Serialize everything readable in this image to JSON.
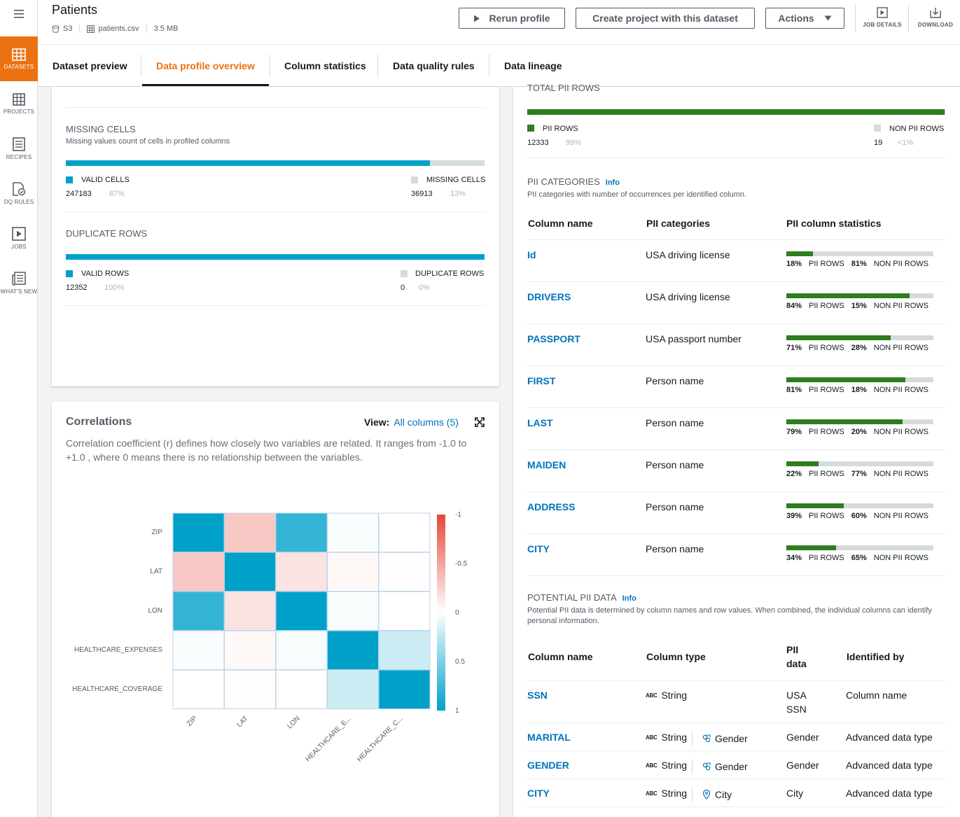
{
  "rail": {
    "items": [
      {
        "label": "DATASETS",
        "icon": "grid-icon",
        "active": true
      },
      {
        "label": "PROJECTS",
        "icon": "projects-icon",
        "active": false
      },
      {
        "label": "RECIPES",
        "icon": "recipe-icon",
        "active": false
      },
      {
        "label": "DQ RULES",
        "icon": "dq-rules-icon",
        "active": false
      },
      {
        "label": "JOBS",
        "icon": "jobs-icon",
        "active": false
      },
      {
        "label": "WHAT'S NEW",
        "icon": "news-icon",
        "active": false
      }
    ]
  },
  "header": {
    "title": "Patients",
    "source": "S3",
    "file": "patients.csv",
    "size": "3.5 MB",
    "rerun_label": "Rerun profile",
    "create_project_label": "Create project with this dataset",
    "actions_label": "Actions",
    "job_details_label": "JOB DETAILS",
    "download_label": "DOWNLOAD"
  },
  "tabs": [
    "Dataset preview",
    "Data profile overview",
    "Column statistics",
    "Data quality rules",
    "Data lineage"
  ],
  "active_tab": "Data profile overview",
  "missing_cells": {
    "title": "MISSING CELLS",
    "subtitle": "Missing values count of cells in profiled columns",
    "valid_label": "VALID CELLS",
    "valid_count": "247183",
    "valid_pct": "87%",
    "missing_label": "MISSING CELLS",
    "missing_count": "36913",
    "missing_pct": "13%",
    "fraction": 0.87
  },
  "duplicate_rows": {
    "title": "DUPLICATE ROWS",
    "valid_label": "VALID ROWS",
    "valid_count": "12352",
    "valid_pct": "100%",
    "dup_label": "DUPLICATE ROWS",
    "dup_count": "0",
    "dup_pct": "0%",
    "fraction": 1.0
  },
  "correlations": {
    "title": "Correlations",
    "view_label": "View:",
    "view_value": "All columns (5)",
    "description": "Correlation coefficient (r) defines how closely two variables are related. It ranges from -1.0 to +1.0 , where 0 means there is no relationship between the variables.",
    "scale_labels": [
      "-1",
      "-0.5",
      "0",
      "0.5",
      "1"
    ],
    "x_labels": [
      "ZIP",
      "LAT",
      "LON",
      "HEALTHCARE_E...",
      "HEALTHCARE_C..."
    ]
  },
  "chart_data": {
    "type": "heatmap",
    "rows": [
      "ZIP",
      "LAT",
      "LON",
      "HEALTHCARE_EXPENSES",
      "HEALTHCARE_COVERAGE"
    ],
    "columns": [
      "ZIP",
      "LAT",
      "LON",
      "HEALTHCARE_E...",
      "HEALTHCARE_C..."
    ],
    "values": [
      [
        1,
        -0.3,
        0.8,
        0.02,
        0.0
      ],
      [
        -0.3,
        1,
        -0.15,
        -0.04,
        -0.01
      ],
      [
        0.8,
        -0.15,
        1,
        0.03,
        0.0
      ],
      [
        0.02,
        -0.04,
        0.03,
        1,
        0.2
      ],
      [
        0.0,
        -0.01,
        0.0,
        0.2,
        1
      ]
    ],
    "colorbar_range": [
      -1,
      1
    ],
    "colorbar_ticks": [
      "-1",
      "-0.5",
      "0",
      "0.5",
      "1"
    ]
  },
  "total_pii": {
    "title": "TOTAL PII ROWS",
    "pii_label": "PII ROWS",
    "pii_count": "12333",
    "pii_pct": "99%",
    "non_label": "NON PII ROWS",
    "non_count": "19",
    "non_pct": "<1%",
    "fraction": 0.999
  },
  "pii_categories": {
    "title": "PII CATEGORIES",
    "info": "Info",
    "subtitle": "PII categories with number of occurrences per identified column.",
    "headers": [
      "Column name",
      "PII categories",
      "PII column statistics"
    ],
    "pii_rows_label": "PII ROWS",
    "non_pii_rows_label": "NON PII ROWS",
    "rows": [
      {
        "name": "Id",
        "category": "USA driving license",
        "pii": "18%",
        "non": "81%",
        "fraction": 0.18
      },
      {
        "name": "DRIVERS",
        "category": "USA driving license",
        "pii": "84%",
        "non": "15%",
        "fraction": 0.84
      },
      {
        "name": "PASSPORT",
        "category": "USA passport number",
        "pii": "71%",
        "non": "28%",
        "fraction": 0.71
      },
      {
        "name": "FIRST",
        "category": "Person name",
        "pii": "81%",
        "non": "18%",
        "fraction": 0.81
      },
      {
        "name": "LAST",
        "category": "Person name",
        "pii": "79%",
        "non": "20%",
        "fraction": 0.79
      },
      {
        "name": "MAIDEN",
        "category": "Person name",
        "pii": "22%",
        "non": "77%",
        "fraction": 0.22
      },
      {
        "name": "ADDRESS",
        "category": "Person name",
        "pii": "39%",
        "non": "60%",
        "fraction": 0.39
      },
      {
        "name": "CITY",
        "category": "Person name",
        "pii": "34%",
        "non": "65%",
        "fraction": 0.34
      }
    ]
  },
  "potential_pii": {
    "title": "POTENTIAL PII DATA",
    "info": "Info",
    "subtitle": "Potential PII data is determined by column names and row values. When combined, the individual columns can identify personal information.",
    "headers": {
      "name": "Column name",
      "type": "Column type",
      "pii_line1": "PII",
      "pii_line2": "data",
      "identified": "Identified by"
    },
    "rows": [
      {
        "name": "SSN",
        "type": "String",
        "adv": "",
        "adv_icon": "",
        "pii1": "USA",
        "pii2": "SSN",
        "identified": "Column name"
      },
      {
        "name": "MARITAL",
        "type": "String",
        "adv": "Gender",
        "adv_icon": "gender-icon",
        "pii1": "Gender",
        "pii2": "",
        "identified": "Advanced data type"
      },
      {
        "name": "GENDER",
        "type": "String",
        "adv": "Gender",
        "adv_icon": "gender-icon",
        "pii1": "Gender",
        "pii2": "",
        "identified": "Advanced data type"
      },
      {
        "name": "CITY",
        "type": "String",
        "adv": "City",
        "adv_icon": "location-pin-icon",
        "pii1": "City",
        "pii2": "",
        "identified": "Advanced data type"
      }
    ],
    "abc_label": "ABC"
  },
  "colors": {
    "accent": "#ec7211",
    "teal": "#00a1c9",
    "green": "#2e7d1e",
    "grey": "#d5dbdb",
    "link": "#0073bb",
    "heat_pos": "#00a1c9",
    "heat_neg": "#e6463a"
  }
}
